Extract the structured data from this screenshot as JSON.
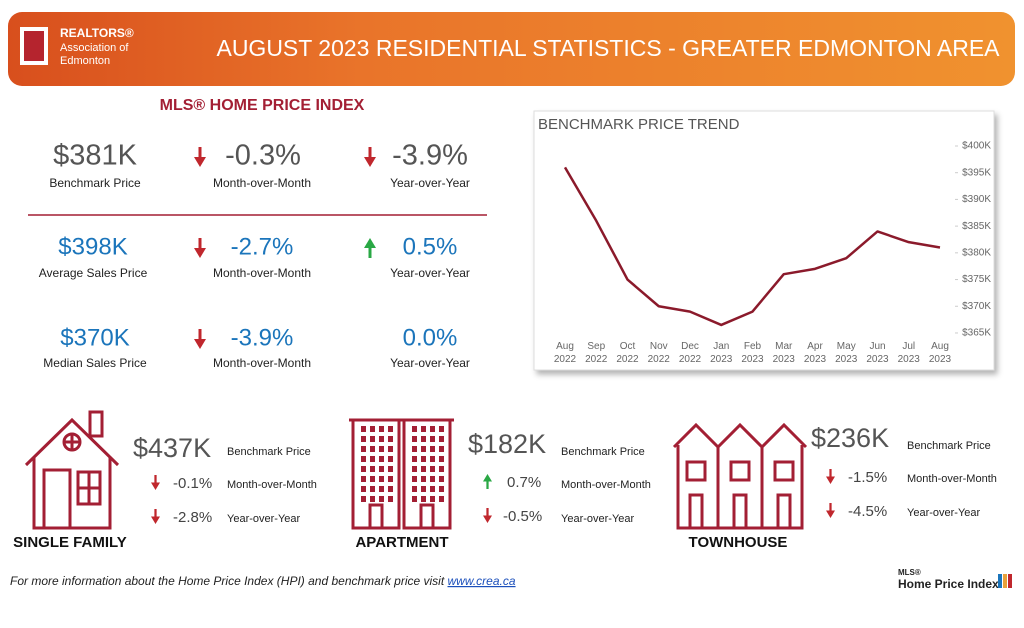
{
  "header": {
    "logo": [
      "REALTORS®",
      "Association of",
      "Edmonton"
    ],
    "title": "AUGUST 2023 RESIDENTIAL STATISTICS - GREATER EDMONTON AREA"
  },
  "index": {
    "title": "MLS® HOME PRICE INDEX",
    "rows": [
      {
        "value": "$381K",
        "label": "Benchmark Price",
        "mom": "-0.3%",
        "mom_label": "Month-over-Month",
        "yoy": "-3.9%",
        "yoy_label": "Year-over-Year"
      },
      {
        "value": "$398K",
        "label": "Average Sales Price",
        "mom": "-2.7%",
        "mom_label": "Month-over-Month",
        "yoy": "0.5%",
        "yoy_label": "Year-over-Year"
      },
      {
        "value": "$370K",
        "label": "Median Sales Price",
        "mom": "-3.9%",
        "mom_label": "Month-over-Month",
        "yoy": "0.0%",
        "yoy_label": "Year-over-Year"
      }
    ]
  },
  "chart_data": {
    "type": "line",
    "title": "BENCHMARK PRICE TREND",
    "categories": [
      "Aug 2022",
      "Sep 2022",
      "Oct 2022",
      "Nov 2022",
      "Dec 2022",
      "Jan 2023",
      "Feb 2023",
      "Mar 2023",
      "Apr 2023",
      "May 2023",
      "Jun 2023",
      "Jul 2023",
      "Aug 2023"
    ],
    "values": [
      396000,
      386000,
      375000,
      370000,
      369000,
      366500,
      369000,
      376000,
      377000,
      379000,
      384000,
      382000,
      381000
    ],
    "color": "#8b1a2b",
    "ylim": [
      362000,
      402000
    ],
    "yticks": [
      {
        "value": 365000,
        "label": "$365K"
      },
      {
        "value": 370000,
        "label": "$370K"
      },
      {
        "value": 375000,
        "label": "$375K"
      },
      {
        "value": 380000,
        "label": "$380K"
      },
      {
        "value": 385000,
        "label": "$385K"
      },
      {
        "value": 390000,
        "label": "$390K"
      },
      {
        "value": 395000,
        "label": "$395K"
      },
      {
        "value": 400000,
        "label": "$400K"
      }
    ]
  },
  "property_types": [
    {
      "name": "SINGLE FAMILY",
      "value": "$437K",
      "value_label": "Benchmark Price",
      "mom": "-0.1%",
      "mom_label": "Month-over-Month",
      "yoy": "-2.8%",
      "yoy_label": "Year-over-Year"
    },
    {
      "name": "APARTMENT",
      "value": "$182K",
      "value_label": "Benchmark Price",
      "mom": "0.7%",
      "mom_label": "Month-over-Month",
      "yoy": "-0.5%",
      "yoy_label": "Year-over-Year"
    },
    {
      "name": "TOWNHOUSE",
      "value": "$236K",
      "value_label": "Benchmark Price",
      "mom": "-1.5%",
      "mom_label": "Month-over-Month",
      "yoy": "-4.5%",
      "yoy_label": "Year-over-Year"
    }
  ],
  "footer": {
    "text": "For more information about the Home Price Index (HPI) and benchmark price visit ",
    "link": "www.crea.ca",
    "logo": [
      "MLS®",
      "Home Price Index"
    ]
  }
}
